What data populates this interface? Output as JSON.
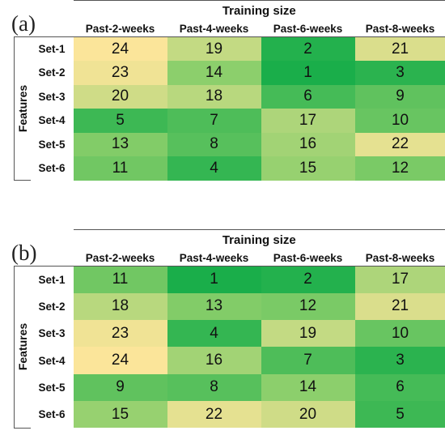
{
  "chart_data": [
    {
      "type": "heatmap",
      "panel_label": "(a)",
      "column_title": "Training size",
      "row_title": "Features",
      "columns": [
        "Past-2-weeks",
        "Past-4-weeks",
        "Past-6-weeks",
        "Past-8-weeks"
      ],
      "rows": [
        "Set-1",
        "Set-2",
        "Set-3",
        "Set-4",
        "Set-5",
        "Set-6"
      ],
      "values": [
        [
          24,
          19,
          2,
          21
        ],
        [
          23,
          14,
          1,
          3
        ],
        [
          20,
          18,
          6,
          9
        ],
        [
          5,
          7,
          17,
          10
        ],
        [
          13,
          8,
          16,
          22
        ],
        [
          11,
          4,
          15,
          12
        ]
      ],
      "colorscale": {
        "low": "#1aae4a",
        "high": "#fbe59a",
        "range": [
          1,
          24
        ]
      }
    },
    {
      "type": "heatmap",
      "panel_label": "(b)",
      "column_title": "Training size",
      "row_title": "Features",
      "columns": [
        "Past-2-weeks",
        "Past-4-weeks",
        "Past-6-weeks",
        "Past-8-weeks"
      ],
      "rows": [
        "Set-1",
        "Set-2",
        "Set-3",
        "Set-4",
        "Set-5",
        "Set-6"
      ],
      "values": [
        [
          11,
          1,
          2,
          17
        ],
        [
          18,
          13,
          12,
          21
        ],
        [
          23,
          4,
          19,
          10
        ],
        [
          24,
          16,
          7,
          3
        ],
        [
          9,
          8,
          14,
          6
        ],
        [
          15,
          22,
          20,
          5
        ]
      ],
      "colorscale": {
        "low": "#1aae4a",
        "high": "#fbe59a",
        "range": [
          1,
          24
        ]
      }
    }
  ]
}
